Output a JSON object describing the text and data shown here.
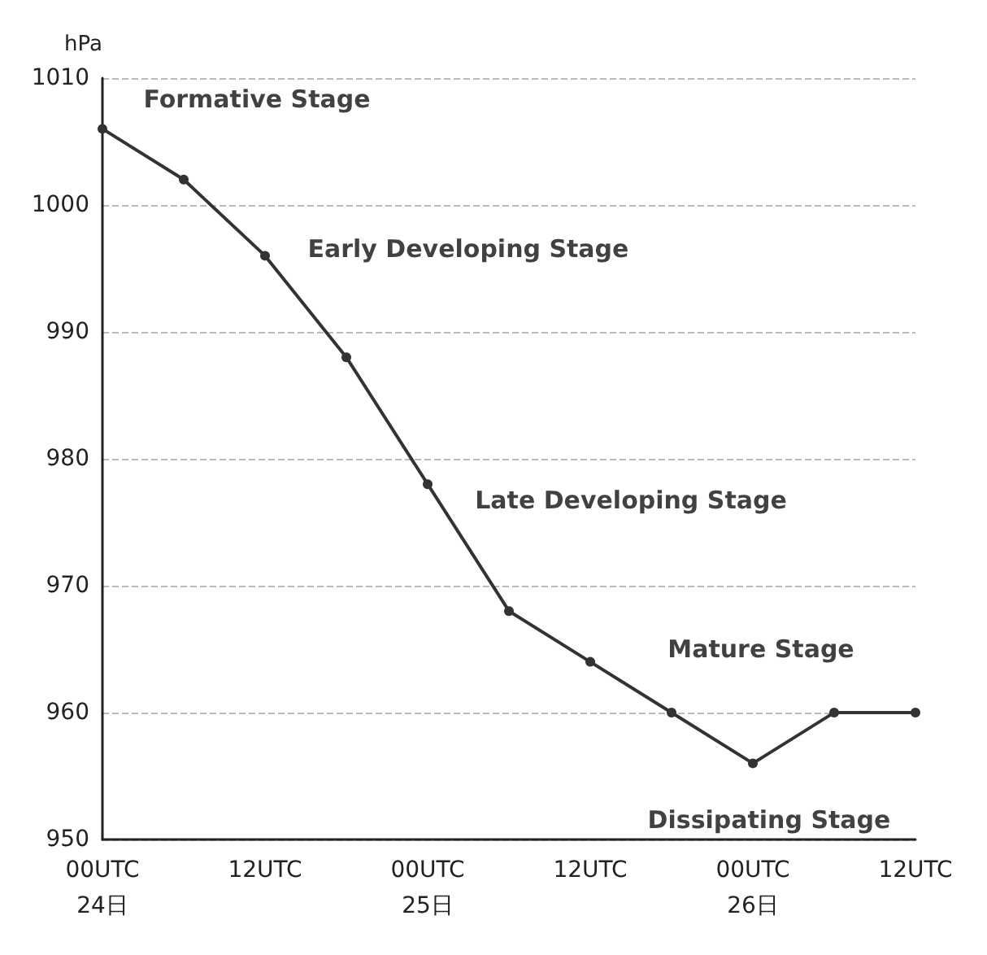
{
  "chart_data": {
    "type": "line",
    "ylabel": "hPa",
    "categories": [
      "00UTC\n24日",
      null,
      "12UTC",
      null,
      "00UTC\n25日",
      null,
      "12UTC",
      null,
      "00UTC\n26日",
      null,
      "12UTC"
    ],
    "series": [
      {
        "color": "#333333",
        "values": [
          1006,
          1002,
          996,
          988,
          978,
          968,
          964,
          960,
          956,
          960,
          960
        ]
      }
    ],
    "ylim": [
      950,
      1010
    ],
    "yticks": [
      950,
      960,
      970,
      980,
      990,
      1000,
      1010
    ],
    "grid": "y",
    "marker": "circle",
    "line_style": "solid",
    "annotations": [
      "Formative Stage",
      "Early Developing Stage",
      "Late Developing Stage",
      "Mature Stage",
      "Dissipating Stage"
    ]
  }
}
